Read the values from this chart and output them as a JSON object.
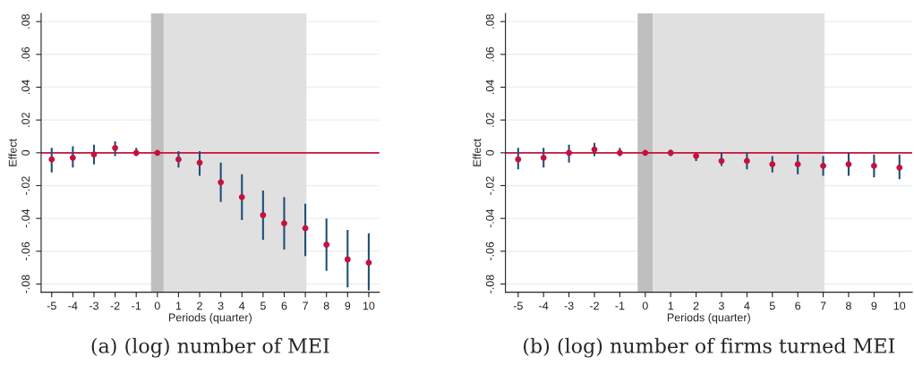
{
  "chart_data": [
    {
      "type": "scatter",
      "xlabel": "Periods (quarter)",
      "ylabel": "Effect",
      "annotations": [
        "(a) (log) number of MEI"
      ],
      "x": [
        -5,
        -4,
        -3,
        -2,
        -1,
        0,
        1,
        2,
        3,
        4,
        5,
        6,
        7,
        8,
        9,
        10
      ],
      "series": [
        {
          "color": "#c8103c",
          "values": [
            -0.004,
            -0.003,
            -0.001,
            0.003,
            0.0,
            0.0,
            -0.004,
            -0.006,
            -0.018,
            -0.027,
            -0.038,
            -0.043,
            -0.046,
            -0.056,
            -0.065,
            -0.067
          ],
          "errors": [
            [
              -0.012,
              0.003
            ],
            [
              -0.009,
              0.004
            ],
            [
              -0.007,
              0.005
            ],
            [
              -0.002,
              0.007
            ],
            [
              -0.002,
              0.003
            ],
            null,
            [
              -0.009,
              0.001
            ],
            [
              -0.014,
              0.001
            ],
            [
              -0.03,
              -0.006
            ],
            [
              -0.041,
              -0.013
            ],
            [
              -0.053,
              -0.023
            ],
            [
              -0.059,
              -0.027
            ],
            [
              -0.063,
              -0.031
            ],
            [
              -0.072,
              -0.04
            ],
            [
              -0.082,
              -0.047
            ],
            [
              -0.084,
              -0.049
            ]
          ]
        }
      ],
      "marker": "circle",
      "xlim": [
        -5.5,
        10.5
      ],
      "xticks": [
        -5,
        -4,
        -3,
        -2,
        -1,
        0,
        1,
        2,
        3,
        4,
        5,
        6,
        7,
        8,
        9,
        10
      ],
      "ylim": [
        -0.085,
        0.085
      ],
      "yticks": [
        {
          "value": -0.08,
          "label": "-.08"
        },
        {
          "value": -0.06,
          "label": "-.06"
        },
        {
          "value": -0.04,
          "label": "-.04"
        },
        {
          "value": -0.02,
          "label": "-.02"
        },
        {
          "value": 0,
          "label": "0"
        },
        {
          "value": 0.02,
          "label": ".02"
        },
        {
          "value": 0.04,
          "label": ".04"
        },
        {
          "value": 0.06,
          "label": ".06"
        },
        {
          "value": 0.08,
          "label": ".08"
        }
      ],
      "grid": "y",
      "ref_lines": [
        {
          "axis": "y",
          "value": 0,
          "color": "#c8103c"
        }
      ],
      "bands": [
        {
          "axis": "x",
          "from": -0.3,
          "to": 0.3,
          "color": "#bfbfbf"
        },
        {
          "axis": "x",
          "from": 0.3,
          "to": 7.05,
          "color": "#e0e0e0"
        }
      ]
    },
    {
      "type": "scatter",
      "xlabel": "Periods (quarter)",
      "ylabel": "Effect",
      "annotations": [
        "(b) (log) number of firms turned MEI"
      ],
      "x": [
        -5,
        -4,
        -3,
        -2,
        -1,
        0,
        1,
        2,
        3,
        4,
        5,
        6,
        7,
        8,
        9,
        10
      ],
      "series": [
        {
          "color": "#c8103c",
          "values": [
            -0.004,
            -0.003,
            0.0,
            0.002,
            0.0,
            0.0,
            0.0,
            -0.002,
            -0.005,
            -0.005,
            -0.007,
            -0.007,
            -0.008,
            -0.007,
            -0.008,
            -0.009
          ],
          "errors": [
            [
              -0.01,
              0.003
            ],
            [
              -0.009,
              0.003
            ],
            [
              -0.006,
              0.005
            ],
            [
              -0.002,
              0.006
            ],
            [
              -0.002,
              0.003
            ],
            null,
            [
              -0.002,
              0.002
            ],
            [
              -0.005,
              0.0
            ],
            [
              -0.008,
              0.0
            ],
            [
              -0.01,
              0.0
            ],
            [
              -0.012,
              -0.002
            ],
            [
              -0.013,
              -0.001
            ],
            [
              -0.014,
              -0.002
            ],
            [
              -0.014,
              0.0
            ],
            [
              -0.015,
              -0.001
            ],
            [
              -0.016,
              -0.001
            ]
          ]
        }
      ],
      "marker": "circle",
      "xlim": [
        -5.5,
        10.5
      ],
      "xticks": [
        -5,
        -4,
        -3,
        -2,
        -1,
        0,
        1,
        2,
        3,
        4,
        5,
        6,
        7,
        8,
        9,
        10
      ],
      "ylim": [
        -0.085,
        0.085
      ],
      "yticks": [
        {
          "value": -0.08,
          "label": "-.08"
        },
        {
          "value": -0.06,
          "label": "-.06"
        },
        {
          "value": -0.04,
          "label": "-.04"
        },
        {
          "value": -0.02,
          "label": "-.02"
        },
        {
          "value": 0,
          "label": "0"
        },
        {
          "value": 0.02,
          "label": ".02"
        },
        {
          "value": 0.04,
          "label": ".04"
        },
        {
          "value": 0.06,
          "label": ".06"
        },
        {
          "value": 0.08,
          "label": ".08"
        }
      ],
      "grid": "y",
      "ref_lines": [
        {
          "axis": "y",
          "value": 0,
          "color": "#c8103c"
        }
      ],
      "bands": [
        {
          "axis": "x",
          "from": -0.3,
          "to": 0.3,
          "color": "#bfbfbf"
        },
        {
          "axis": "x",
          "from": 0.3,
          "to": 7.05,
          "color": "#e0e0e0"
        }
      ]
    }
  ]
}
